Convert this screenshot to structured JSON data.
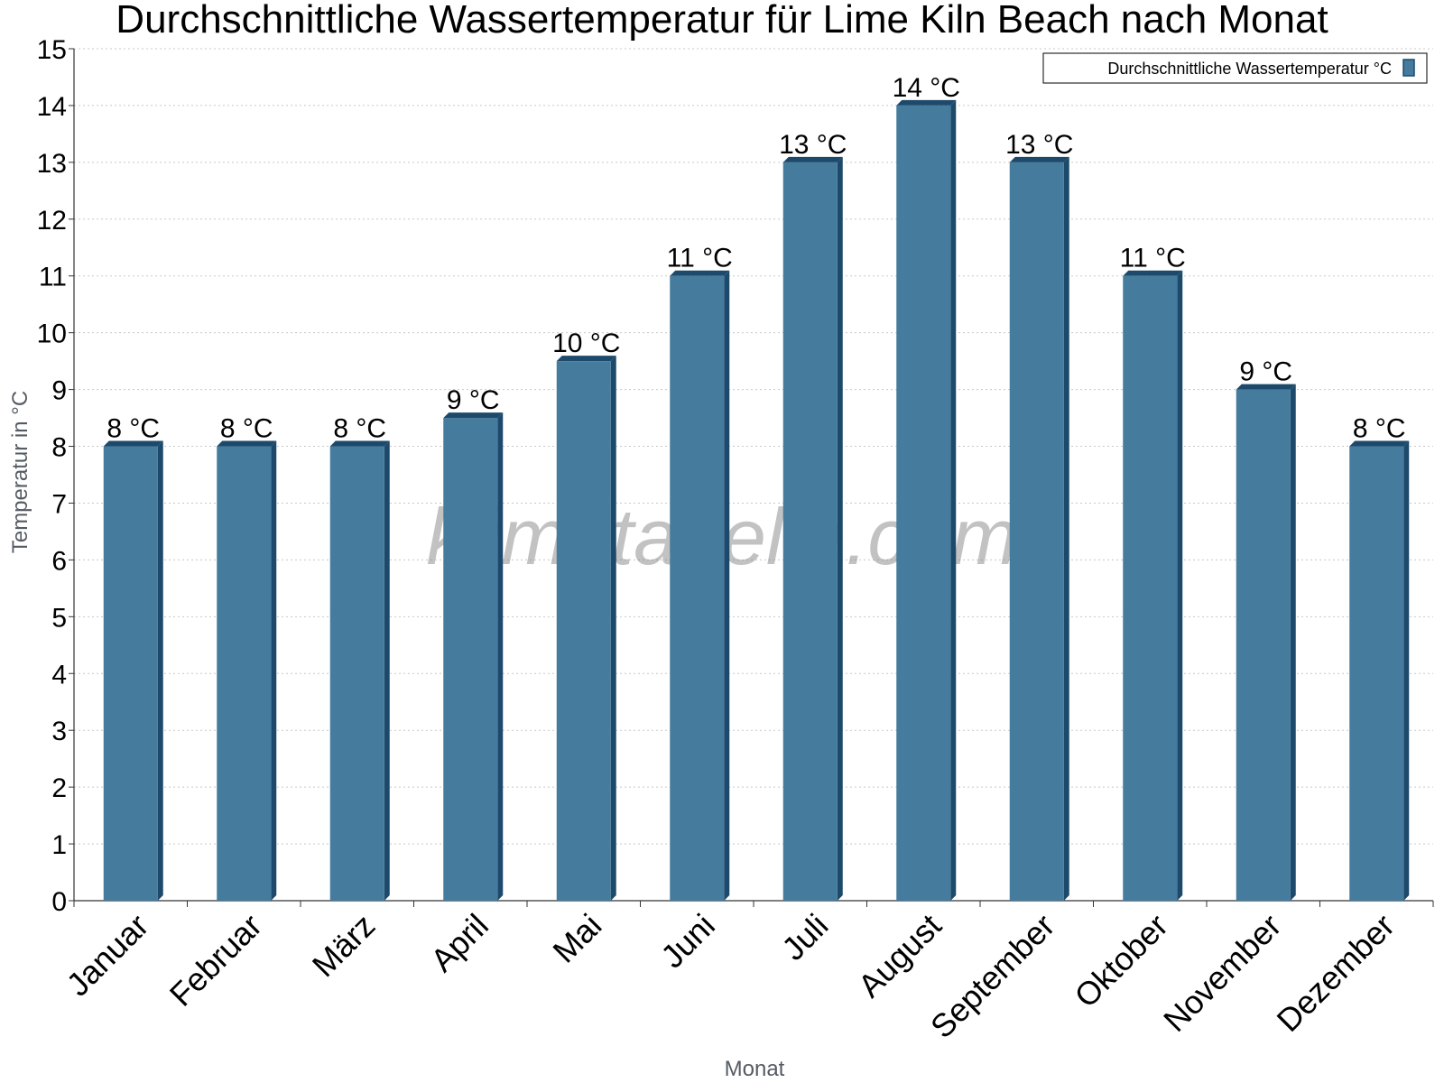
{
  "chart_data": {
    "type": "bar",
    "title": "Durchschnittliche Wassertemperatur für Lime Kiln Beach nach Monat",
    "xlabel": "Monat",
    "ylabel": "Temperatur in °C",
    "ylim": [
      0,
      15
    ],
    "yticks": [
      0,
      1,
      2,
      3,
      4,
      5,
      6,
      7,
      8,
      9,
      10,
      11,
      12,
      13,
      14,
      15
    ],
    "grid": true,
    "legend_position": "top-right",
    "categories": [
      "Januar",
      "Februar",
      "März",
      "April",
      "Mai",
      "Juni",
      "Juli",
      "August",
      "September",
      "Oktober",
      "November",
      "Dezember"
    ],
    "series": [
      {
        "name": "Durchschnittliche Wassertemperatur °C",
        "values": [
          8,
          8,
          8,
          8.5,
          9.5,
          11,
          13,
          14,
          13,
          11,
          9,
          8
        ],
        "labels": [
          "8 °C",
          "8 °C",
          "8 °C",
          "9 °C",
          "10 °C",
          "11 °C",
          "13 °C",
          "14 °C",
          "13 °C",
          "11 °C",
          "9 °C",
          "8 °C"
        ]
      }
    ],
    "colors": {
      "bar": "#457b9d",
      "bar_side": "#1d4a6b",
      "grid": "#c8c8c8",
      "axis": "#333333"
    },
    "watermark": "klimatabelle.com"
  }
}
